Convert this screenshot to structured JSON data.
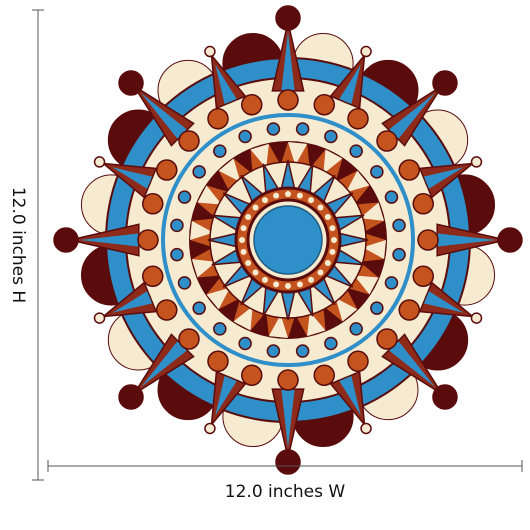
{
  "dimensions": {
    "height_label": "12.0 inches H",
    "width_label": "12.0 inches W"
  }
}
